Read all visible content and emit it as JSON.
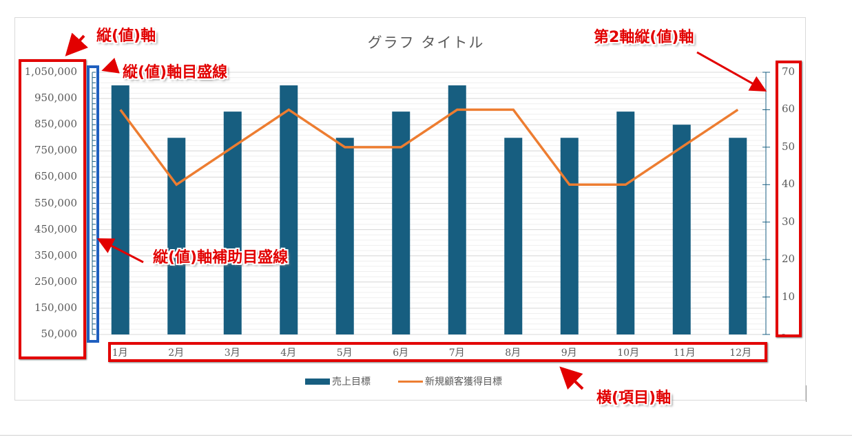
{
  "chart_data": {
    "type": "bar+line",
    "title": "グラフ タイトル",
    "categories": [
      "1月",
      "2月",
      "3月",
      "4月",
      "5月",
      "6月",
      "7月",
      "8月",
      "9月",
      "10月",
      "11月",
      "12月"
    ],
    "series": [
      {
        "name": "売上目標",
        "type": "bar",
        "axis": "primary",
        "color": "#175e80",
        "values": [
          1000000,
          800000,
          900000,
          1000000,
          800000,
          900000,
          1000000,
          800000,
          800000,
          900000,
          850000,
          800000
        ]
      },
      {
        "name": "新規顧客獲得目標",
        "type": "line",
        "axis": "secondary",
        "color": "#ed7d31",
        "values": [
          60,
          40,
          50,
          60,
          50,
          50,
          60,
          60,
          40,
          40,
          50,
          60
        ]
      }
    ],
    "primary_axis": {
      "ylim": [
        50000,
        1050000
      ],
      "ticks": [
        "1,050,000",
        "950,000",
        "850,000",
        "750,000",
        "650,000",
        "550,000",
        "450,000",
        "350,000",
        "250,000",
        "150,000",
        "50,000"
      ],
      "tick_values": [
        1050000,
        950000,
        850000,
        750000,
        650000,
        550000,
        450000,
        350000,
        250000,
        150000,
        50000
      ],
      "major_gridlines": true,
      "minor_gridlines": true
    },
    "secondary_axis": {
      "ylim": [
        0,
        70
      ],
      "ticks": [
        "70",
        "60",
        "50",
        "40",
        "30",
        "20",
        "10",
        "-"
      ],
      "tick_values": [
        70,
        60,
        50,
        40,
        30,
        20,
        10,
        0
      ]
    },
    "legend_position": "bottom",
    "xlabel": "",
    "ylabel": ""
  },
  "annotations": {
    "vertical_axis": "縦(値)軸",
    "vertical_major_gridlines": "縦(値)軸目盛線",
    "secondary_vertical_axis": "第2軸縦(値)軸",
    "vertical_minor_gridlines": "縦(値)軸補助目盛線",
    "horizontal_axis": "横(項目)軸",
    "color": "#e20000"
  }
}
